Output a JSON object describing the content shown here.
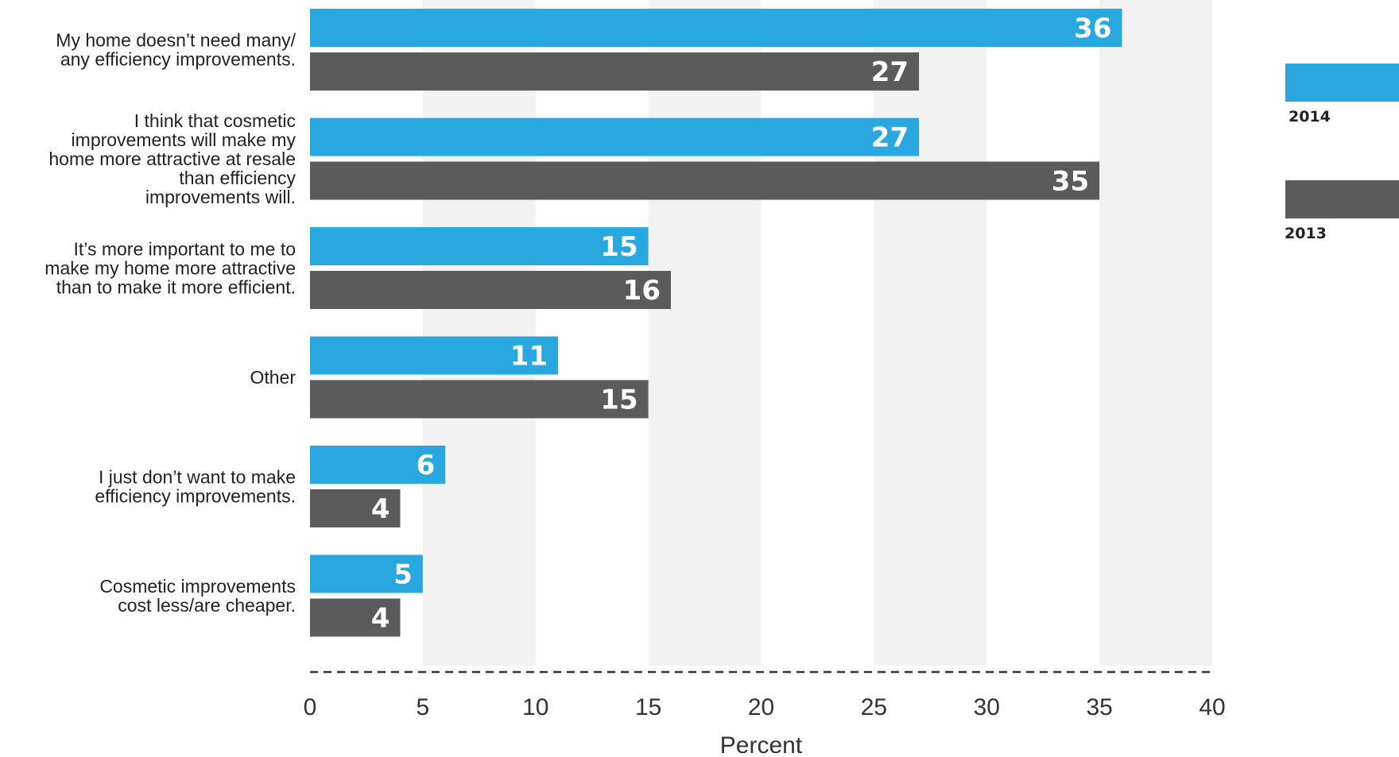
{
  "chart_data": {
    "type": "bar",
    "orientation": "horizontal",
    "categories": [
      [
        "My home doesn’t need many/",
        "any efficiency improvements."
      ],
      [
        "I think that cosmetic",
        "improvements will make my",
        "home more attractive at resale",
        "than efficiency",
        "improvements will."
      ],
      [
        "It’s more important to me to",
        "make my home more attractive",
        "than to make it more efficient."
      ],
      [
        "Other"
      ],
      [
        "I just don’t want to make",
        "efficiency improvements."
      ],
      [
        "Cosmetic improvements",
        "cost less/are cheaper."
      ]
    ],
    "series": [
      {
        "name": "2014",
        "color": "#29a8e0",
        "values": [
          36,
          27,
          15,
          11,
          6,
          5
        ]
      },
      {
        "name": "2013",
        "color": "#5b5b5b",
        "values": [
          27,
          35,
          16,
          15,
          4,
          4
        ]
      }
    ],
    "xlabel": "Percent",
    "xlim": [
      0,
      40
    ],
    "xticks": [
      0,
      5,
      10,
      15,
      20,
      25,
      30,
      35,
      40
    ],
    "legend_position": "right",
    "grid": "alternating vertical bands"
  }
}
